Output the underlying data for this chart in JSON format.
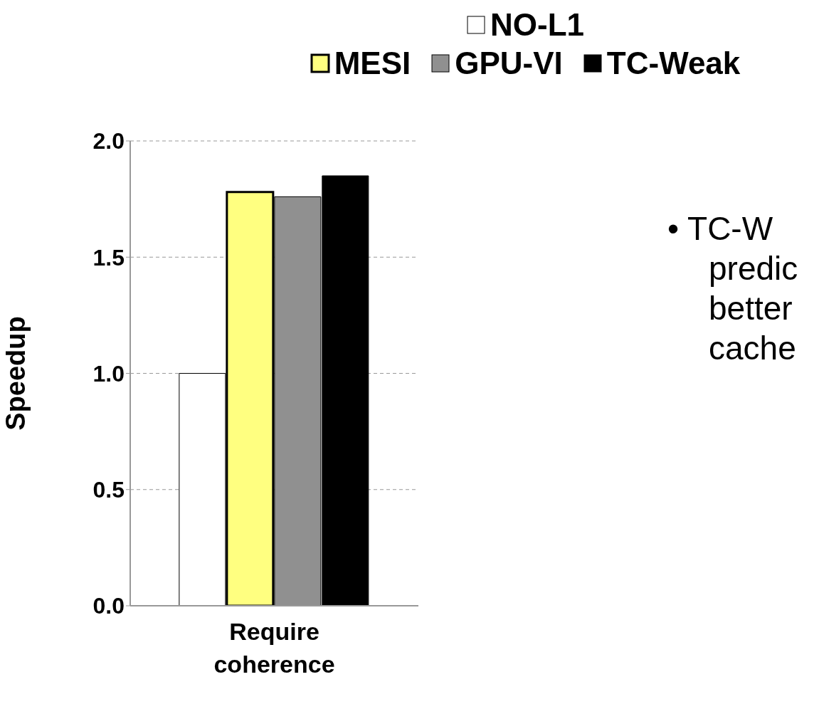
{
  "chart_data": {
    "type": "bar",
    "ylabel": "Speedup",
    "categories": [
      "Require coherence"
    ],
    "series": [
      {
        "name": "NO-L1",
        "color": "#ffffff",
        "values": [
          1.0
        ]
      },
      {
        "name": "MESI",
        "color": "#ffff80",
        "values": [
          1.78
        ]
      },
      {
        "name": "GPU-VI",
        "color": "#909090",
        "values": [
          1.76
        ]
      },
      {
        "name": "TC-Weak",
        "color": "#000000",
        "values": [
          1.85
        ]
      }
    ],
    "ylim": [
      0,
      2
    ],
    "yticks": [
      {
        "value": 0,
        "label": "0.0"
      },
      {
        "value": 0.5,
        "label": "0.5"
      },
      {
        "value": 1,
        "label": "1.0"
      },
      {
        "value": 1.5,
        "label": "1.5"
      },
      {
        "value": 2,
        "label": "2.0"
      }
    ],
    "grid": "y",
    "legend": "top",
    "annotations": [
      "• TC-W\npredic\nbetter\ncache"
    ]
  }
}
